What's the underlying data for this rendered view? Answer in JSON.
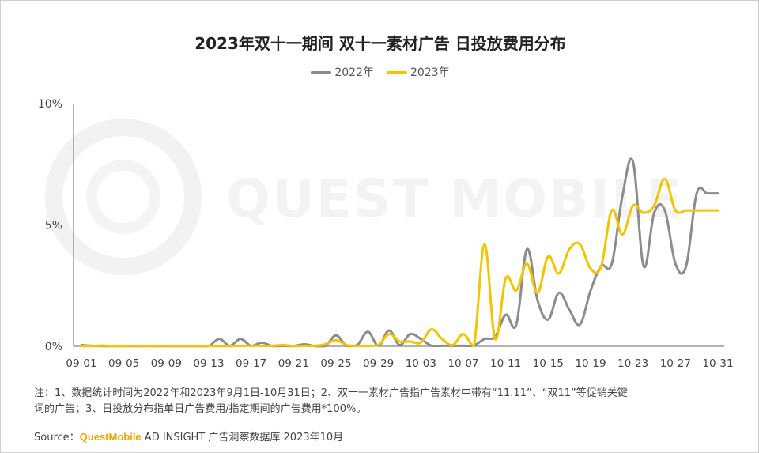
{
  "chart_data": {
    "type": "line",
    "title": "2023年双十一期间 双十一素材广告 日投放费用分布",
    "xlabel": "",
    "ylabel": "",
    "x": [
      "09-01",
      "09-02",
      "09-03",
      "09-04",
      "09-05",
      "09-06",
      "09-07",
      "09-08",
      "09-09",
      "09-10",
      "09-11",
      "09-12",
      "09-13",
      "09-14",
      "09-15",
      "09-16",
      "09-17",
      "09-18",
      "09-19",
      "09-20",
      "09-21",
      "09-22",
      "09-23",
      "09-24",
      "09-25",
      "09-26",
      "09-27",
      "09-28",
      "09-29",
      "09-30",
      "10-01",
      "10-02",
      "10-03",
      "10-04",
      "10-05",
      "10-06",
      "10-07",
      "10-08",
      "10-09",
      "10-10",
      "10-11",
      "10-12",
      "10-13",
      "10-14",
      "10-15",
      "10-16",
      "10-17",
      "10-18",
      "10-19",
      "10-20",
      "10-21",
      "10-22",
      "10-23",
      "10-24",
      "10-25",
      "10-26",
      "10-27",
      "10-28",
      "10-29",
      "10-30",
      "10-31"
    ],
    "tick_labels": [
      "09-01",
      "09-05",
      "09-09",
      "09-13",
      "09-17",
      "09-21",
      "09-25",
      "09-29",
      "10-03",
      "10-07",
      "10-11",
      "10-15",
      "10-19",
      "10-23",
      "10-27",
      "10-31"
    ],
    "ylim": [
      0,
      10
    ],
    "y_ticks": [
      "0%",
      "5%",
      "10%"
    ],
    "legend_position": "top-center",
    "series": [
      {
        "name": "2022年",
        "color": "#8c8c8c",
        "values": [
          0.05,
          0.02,
          0.01,
          0.01,
          0.01,
          0.01,
          0.01,
          0.01,
          0.01,
          0.01,
          0.01,
          0.01,
          0.01,
          0.3,
          0.02,
          0.3,
          0.02,
          0.15,
          0.01,
          0.02,
          0.01,
          0.08,
          0.01,
          0.01,
          0.45,
          0.02,
          0.05,
          0.6,
          0.02,
          0.65,
          0.05,
          0.5,
          0.3,
          0.02,
          0.02,
          0.02,
          0.02,
          0.03,
          0.3,
          0.4,
          1.3,
          0.9,
          4.0,
          1.9,
          1.1,
          2.2,
          1.5,
          0.9,
          2.3,
          3.3,
          3.4,
          6.2,
          7.6,
          3.3,
          5.5,
          5.6,
          3.4,
          3.3,
          6.3,
          6.3,
          6.3
        ]
      },
      {
        "name": "2023年",
        "color": "#f5c400",
        "values": [
          0.01,
          0.01,
          0.03,
          0.01,
          0.01,
          0.02,
          0.02,
          0.01,
          0.02,
          0.02,
          0.02,
          0.02,
          0.01,
          0.01,
          0.01,
          0.02,
          0.02,
          0.02,
          0.02,
          0.05,
          0.01,
          0.02,
          0.02,
          0.08,
          0.25,
          0.05,
          0.02,
          0.02,
          0.05,
          0.5,
          0.2,
          0.2,
          0.15,
          0.7,
          0.3,
          0.05,
          0.5,
          0.02,
          4.2,
          0.3,
          2.8,
          2.3,
          3.4,
          2.2,
          3.7,
          3.0,
          4.0,
          4.2,
          3.2,
          3.3,
          5.6,
          4.6,
          5.8,
          5.5,
          5.8,
          6.9,
          5.6,
          5.6,
          5.6,
          5.6,
          5.6
        ]
      }
    ]
  },
  "watermark": "QUEST MOBILE",
  "footnote": {
    "line1": "注：1、数据统计时间为2022年和2023年9月1日-10月31日；2、双十一素材广告指广告素材中带有“11.11”、“双11”等促销关键",
    "line2": "词的广告；3、日投放分布指单日广告费用/指定期间的广告费用*100%。"
  },
  "source": {
    "label": "Source：",
    "brand": "QuestMobile",
    "rest": " AD INSIGHT 广告洞察数据库 2023年10月"
  }
}
